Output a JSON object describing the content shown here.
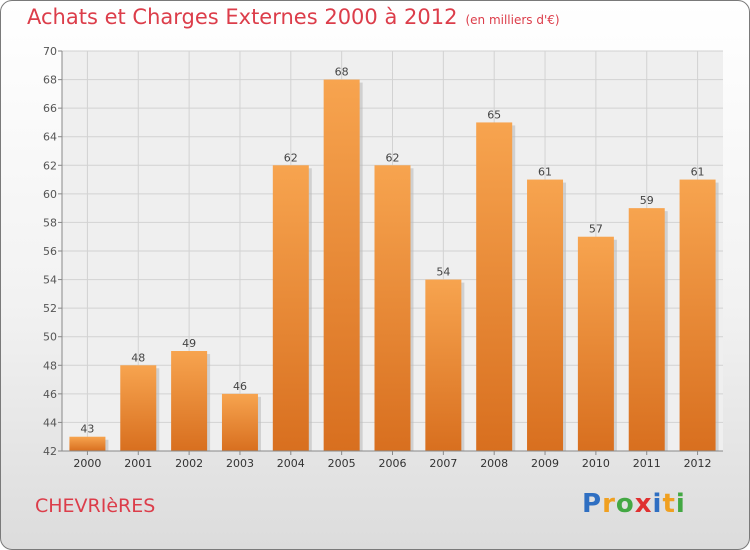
{
  "header": {
    "title": "Achats et Charges Externes 2000 à 2012",
    "unit": "(en milliers d'€)"
  },
  "footer": {
    "commune": "CHEVRIèRES",
    "logo_letters": [
      "P",
      "r",
      "o",
      "x",
      "i",
      "t",
      "i"
    ],
    "logo_colors": [
      "#2f6fc2",
      "#f0a020",
      "#43a843",
      "#e03030",
      "#2f6fc2",
      "#f0a020",
      "#43a843"
    ]
  },
  "colors": {
    "bar_light": "#f7a44f",
    "bar_dark": "#d86f1f",
    "title": "#dc3d4a"
  },
  "chart_data": {
    "type": "bar",
    "categories": [
      "2000",
      "2001",
      "2002",
      "2003",
      "2004",
      "2005",
      "2006",
      "2007",
      "2008",
      "2009",
      "2010",
      "2011",
      "2012"
    ],
    "values": [
      43,
      48,
      49,
      46,
      62,
      68,
      62,
      54,
      65,
      61,
      57,
      59,
      61
    ],
    "data_labels": [
      "43",
      "48",
      "49",
      "46",
      "62",
      "68",
      "62",
      "54",
      "65",
      "61",
      "57",
      "59",
      "61"
    ],
    "yticks": [
      "42",
      "44",
      "46",
      "48",
      "50",
      "52",
      "54",
      "56",
      "58",
      "60",
      "62",
      "64",
      "66",
      "68",
      "70"
    ],
    "ylim": [
      42,
      70
    ],
    "grid": true,
    "title": "Achats et Charges Externes 2000 à 2012",
    "xlabel": "",
    "ylabel": ""
  }
}
